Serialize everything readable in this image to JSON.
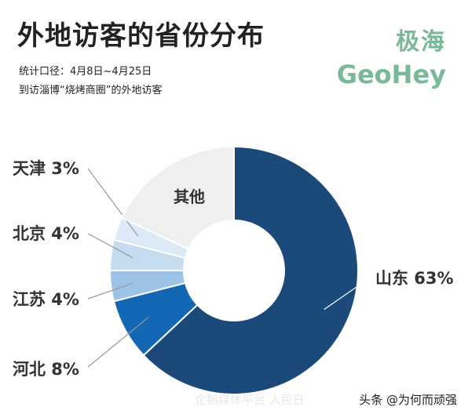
{
  "header": {
    "title": "外地访客的省份分布",
    "subtitle_1": "统计口径：4月8日~4月25日",
    "subtitle_2": "到访淄博“烧烤商圈”的外地访客"
  },
  "brand": {
    "name_cn": "极海",
    "name_en": "GeoHey"
  },
  "watermark": {
    "platform": "企鹅媒体平台 人民日",
    "credit": "头条 @为何而顽强"
  },
  "colors": {
    "shandong": "#1b4a7a",
    "hebei": "#1467b5",
    "jiangsu": "#9cc3e6",
    "beijing": "#c5dcf0",
    "tianjin": "#dce9f6",
    "other": "#efefef",
    "brand": "#78b99a"
  },
  "chart_data": {
    "type": "pie",
    "title": "外地访客的省份分布",
    "slices": [
      {
        "name": "山东",
        "label": "山东 63%",
        "value": 63,
        "color": "#1b4a7a"
      },
      {
        "name": "河北",
        "label": "河北 8%",
        "value": 8,
        "color": "#1467b5"
      },
      {
        "name": "江苏",
        "label": "江苏 4%",
        "value": 4,
        "color": "#9cc3e6"
      },
      {
        "name": "北京",
        "label": "北京 4%",
        "value": 4,
        "color": "#c5dcf0"
      },
      {
        "name": "天津",
        "label": "天津 3%",
        "value": 3,
        "color": "#dce9f6"
      },
      {
        "name": "其他",
        "label": "其他",
        "value": 18,
        "color": "#efefef"
      }
    ],
    "donut": true,
    "start": "top, clockwise"
  }
}
